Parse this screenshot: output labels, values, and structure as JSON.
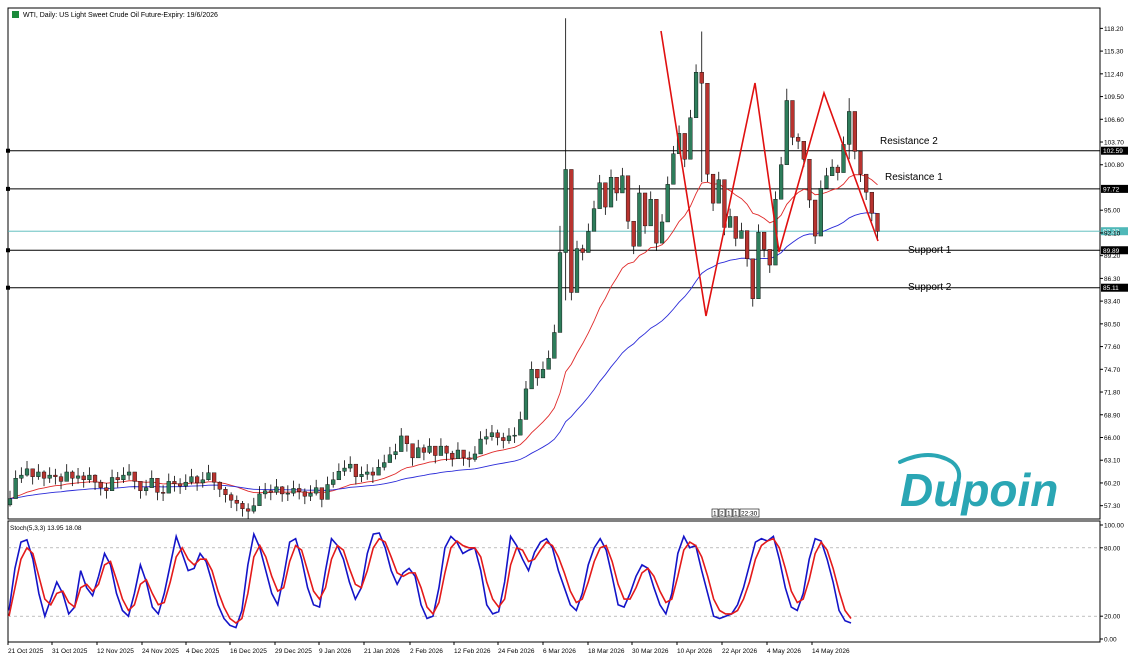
{
  "header": {
    "title": "WTI, Daily:  US Light Sweet Crude Oil Future-Expiry: 19/6/2026"
  },
  "levels": [
    {
      "key": "resistance2",
      "name": "Resistance 2",
      "value": 102.59,
      "value_label": "102.59"
    },
    {
      "key": "resistance1",
      "name": "Resistance 1",
      "value": 97.72,
      "value_label": "97.72"
    },
    {
      "key": "support1",
      "name": "Support 1",
      "value": 89.89,
      "value_label": "89.89"
    },
    {
      "key": "support2",
      "name": "Support 2",
      "value": 85.11,
      "value_label": "85.11"
    }
  ],
  "current_price": {
    "value": 92.32,
    "label": "92.32",
    "color": "#4fb8b8"
  },
  "stoch": {
    "label": "Stoch(5,3,3) 13.95 18.08",
    "k": 13.95,
    "d": 18.08
  },
  "time_markers": [
    "1",
    "2",
    "1",
    "1",
    "22:30"
  ],
  "brand": {
    "name": "Dupoin",
    "color": "#2aa6b4"
  },
  "colors": {
    "bull": "#2e7d5b",
    "bear": "#b8332f",
    "ma_fast": "#e02a2a",
    "ma_slow": "#2a2ad8",
    "pattern": "#e01010",
    "stoch_k": "#1414c8",
    "stoch_d": "#e41a1a"
  },
  "chart_data": [
    {
      "type": "candlestick",
      "title": "WTI, Daily:  US Light Sweet Crude Oil Future-Expiry: 19/6/2026",
      "y_ticks": [
        "118.20",
        "115.30",
        "112.40",
        "109.50",
        "106.60",
        "103.70",
        "100.80",
        "95.00",
        "92.10",
        "89.20",
        "86.30",
        "83.40",
        "80.50",
        "77.60",
        "74.70",
        "71.80",
        "68.90",
        "66.00",
        "63.10",
        "60.20",
        "57.30"
      ],
      "ylim": [
        55.6,
        120.8
      ],
      "x_labels": [
        "21 Oct 2025",
        "31 Oct 2025",
        "12 Nov 2025",
        "24 Nov 2025",
        "4 Dec 2025",
        "16 Dec 2025",
        "29 Dec 2025",
        "9 Jan 2026",
        "21 Jan 2026",
        "2 Feb 2026",
        "12 Feb 2026",
        "24 Feb 2026",
        "6 Mar 2026",
        "18 Mar 2026",
        "30 Mar 2026",
        "10 Apr 2026",
        "22 Apr 2026",
        "4 May 2026",
        "14 May 2026"
      ],
      "close": [
        58.2,
        60.8,
        61.2,
        62.0,
        61.0,
        61.6,
        60.8,
        61.2,
        61.0,
        60.4,
        61.6,
        60.8,
        61.1,
        60.6,
        61.2,
        60.3,
        59.6,
        59.2,
        60.9,
        60.6,
        61.2,
        61.6,
        60.4,
        59.2,
        59.6,
        60.8,
        59.0,
        58.9,
        60.4,
        60.1,
        59.8,
        60.3,
        61.0,
        60.2,
        60.6,
        61.5,
        60.3,
        59.4,
        58.7,
        58.0,
        57.6,
        56.9,
        56.6,
        57.3,
        58.8,
        59.2,
        59.0,
        59.7,
        58.8,
        58.9,
        59.5,
        59.1,
        58.5,
        58.9,
        59.6,
        58.1,
        60.0,
        60.6,
        61.7,
        62.1,
        62.6,
        61.0,
        61.3,
        61.6,
        61.2,
        62.2,
        62.8,
        63.8,
        64.2,
        66.2,
        65.2,
        63.4,
        64.7,
        64.1,
        64.9,
        63.7,
        64.9,
        64.0,
        63.3,
        64.4,
        63.4,
        63.2,
        63.9,
        65.8,
        66.1,
        66.6,
        66.0,
        65.6,
        66.2,
        66.3,
        68.3,
        72.2,
        74.7,
        73.6,
        74.7,
        76.1,
        79.4,
        89.6,
        100.2,
        84.5,
        90.1,
        89.6,
        92.3,
        95.2,
        98.5,
        95.4,
        99.2,
        97.2,
        99.4,
        93.6,
        90.4,
        97.2,
        93.0,
        96.4,
        90.8,
        93.5,
        98.3,
        102.2,
        104.8,
        101.5,
        106.8,
        112.6,
        111.2,
        99.6,
        95.9,
        98.9,
        92.8,
        94.2,
        91.4,
        92.4,
        88.8,
        83.7,
        92.2,
        90.0,
        88.0,
        96.4,
        100.8,
        109.0,
        104.3,
        103.8,
        101.5,
        96.3,
        91.7,
        97.8,
        99.4,
        100.5,
        99.8,
        103.4,
        107.6,
        102.5,
        99.6,
        97.3,
        94.6,
        92.3
      ],
      "high": [
        59.2,
        61.8,
        62.2,
        63.0,
        62.0,
        62.6,
        61.8,
        62.2,
        62.0,
        61.4,
        62.6,
        61.8,
        62.1,
        61.6,
        62.2,
        61.3,
        60.6,
        60.2,
        61.9,
        61.6,
        62.2,
        62.6,
        61.4,
        60.2,
        60.6,
        61.8,
        60.0,
        59.9,
        61.4,
        61.1,
        60.8,
        61.3,
        62.0,
        61.2,
        61.6,
        62.5,
        61.3,
        60.4,
        59.7,
        59.0,
        58.6,
        57.9,
        57.6,
        58.3,
        59.8,
        60.2,
        60.0,
        60.7,
        59.8,
        59.9,
        60.5,
        60.1,
        59.5,
        59.9,
        60.6,
        59.1,
        61.0,
        61.6,
        62.7,
        63.1,
        63.6,
        62.0,
        62.3,
        62.6,
        62.2,
        63.2,
        63.8,
        64.8,
        65.2,
        67.2,
        66.2,
        64.4,
        65.7,
        65.1,
        65.9,
        64.7,
        65.9,
        65.0,
        64.3,
        65.4,
        64.4,
        64.2,
        64.9,
        66.8,
        67.1,
        67.6,
        67.0,
        66.6,
        67.2,
        67.3,
        69.3,
        73.2,
        75.7,
        74.6,
        75.7,
        77.1,
        80.4,
        93.0,
        119.5,
        90.5,
        91.1,
        90.6,
        93.3,
        96.2,
        99.5,
        96.4,
        100.2,
        98.2,
        100.4,
        94.6,
        91.4,
        98.2,
        94.0,
        97.4,
        91.8,
        94.5,
        99.3,
        103.2,
        105.8,
        102.5,
        107.8,
        113.6,
        117.8,
        100.6,
        96.9,
        99.9,
        93.8,
        95.2,
        92.4,
        93.4,
        89.8,
        84.7,
        93.2,
        91.0,
        89.0,
        97.4,
        101.8,
        110.5,
        105.3,
        104.8,
        102.5,
        97.3,
        92.7,
        98.8,
        100.4,
        101.5,
        100.8,
        104.4,
        109.3,
        103.5,
        100.6,
        98.3,
        95.6,
        93.3
      ],
      "low": [
        57.2,
        59.8,
        60.2,
        61.0,
        60.0,
        60.6,
        59.8,
        60.2,
        60.0,
        59.4,
        60.6,
        59.8,
        60.1,
        59.6,
        60.2,
        59.3,
        58.6,
        58.2,
        59.9,
        59.6,
        60.2,
        60.6,
        59.4,
        58.2,
        58.6,
        59.8,
        58.0,
        57.9,
        59.4,
        59.1,
        58.8,
        59.3,
        60.0,
        59.2,
        59.6,
        60.5,
        59.3,
        58.4,
        57.7,
        57.0,
        56.6,
        55.9,
        55.6,
        56.3,
        57.8,
        58.2,
        58.0,
        58.7,
        57.8,
        57.9,
        58.5,
        58.1,
        57.5,
        57.9,
        58.6,
        57.1,
        59.0,
        59.6,
        60.7,
        61.1,
        61.6,
        60.0,
        60.3,
        60.6,
        60.2,
        61.2,
        61.8,
        62.8,
        63.2,
        65.2,
        64.2,
        62.4,
        63.7,
        63.1,
        63.9,
        62.7,
        63.9,
        63.0,
        62.3,
        63.4,
        62.4,
        62.2,
        62.9,
        64.8,
        65.1,
        65.6,
        65.0,
        64.6,
        65.2,
        65.3,
        67.3,
        71.2,
        73.7,
        72.6,
        73.7,
        75.1,
        78.4,
        82.6,
        83.5,
        83.5,
        89.1,
        88.6,
        91.3,
        94.2,
        97.5,
        94.4,
        98.2,
        96.2,
        98.4,
        92.6,
        89.4,
        96.2,
        92.0,
        95.4,
        89.8,
        92.5,
        97.3,
        101.2,
        103.8,
        100.5,
        105.8,
        111.6,
        98.6,
        98.6,
        94.9,
        97.9,
        91.8,
        93.2,
        90.4,
        91.4,
        87.8,
        82.7,
        91.2,
        89.0,
        87.0,
        95.4,
        99.8,
        103.3,
        103.3,
        102.8,
        100.5,
        95.3,
        90.7,
        96.8,
        98.4,
        99.5,
        98.8,
        102.4,
        101.5,
        101.5,
        98.6,
        96.3,
        93.6,
        91.3
      ]
    },
    {
      "type": "line",
      "title": "Stoch(5,3,3) 13.95 18.08",
      "y_ticks": [
        "100.00",
        "80.00",
        "20.00",
        "0.00"
      ],
      "ylim": [
        0,
        100
      ],
      "series": [
        {
          "name": "K",
          "values": [
            25,
            62,
            85,
            87,
            70,
            40,
            20,
            35,
            50,
            40,
            22,
            28,
            60,
            45,
            38,
            55,
            75,
            65,
            40,
            25,
            20,
            40,
            65,
            50,
            28,
            22,
            40,
            65,
            90,
            75,
            60,
            62,
            75,
            68,
            50,
            30,
            18,
            12,
            10,
            25,
            65,
            92,
            80,
            60,
            40,
            30,
            55,
            85,
            88,
            70,
            45,
            30,
            28,
            60,
            88,
            82,
            70,
            50,
            35,
            45,
            75,
            92,
            93,
            80,
            60,
            48,
            58,
            62,
            55,
            30,
            18,
            20,
            45,
            80,
            90,
            85,
            75,
            78,
            80,
            60,
            30,
            22,
            24,
            50,
            90,
            82,
            70,
            60,
            76,
            85,
            88,
            80,
            60,
            45,
            30,
            25,
            40,
            65,
            80,
            88,
            78,
            55,
            30,
            28,
            40,
            55,
            65,
            62,
            45,
            30,
            22,
            40,
            75,
            90,
            80,
            82,
            60,
            40,
            20,
            18,
            20,
            22,
            30,
            45,
            65,
            85,
            88,
            86,
            90,
            70,
            45,
            28,
            25,
            40,
            70,
            88,
            86,
            70,
            50,
            25,
            16,
            14
          ]
        },
        {
          "name": "D",
          "values": [
            20,
            45,
            70,
            80,
            75,
            55,
            35,
            30,
            40,
            42,
            32,
            28,
            45,
            48,
            42,
            48,
            65,
            68,
            52,
            35,
            25,
            30,
            48,
            52,
            40,
            30,
            32,
            50,
            72,
            80,
            70,
            65,
            70,
            70,
            60,
            42,
            28,
            18,
            14,
            18,
            40,
            72,
            82,
            72,
            55,
            42,
            45,
            68,
            82,
            78,
            60,
            42,
            35,
            45,
            70,
            82,
            78,
            62,
            48,
            45,
            60,
            80,
            88,
            85,
            72,
            58,
            55,
            58,
            58,
            45,
            28,
            22,
            32,
            58,
            80,
            86,
            82,
            80,
            80,
            72,
            50,
            35,
            28,
            35,
            65,
            80,
            78,
            68,
            70,
            78,
            85,
            82,
            72,
            58,
            42,
            32,
            35,
            50,
            68,
            80,
            82,
            68,
            48,
            35,
            35,
            45,
            58,
            62,
            55,
            42,
            32,
            35,
            55,
            78,
            85,
            82,
            72,
            55,
            35,
            25,
            22,
            22,
            25,
            35,
            50,
            70,
            82,
            86,
            88,
            80,
            62,
            42,
            32,
            35,
            52,
            75,
            85,
            78,
            62,
            42,
            25,
            18
          ]
        }
      ]
    }
  ]
}
